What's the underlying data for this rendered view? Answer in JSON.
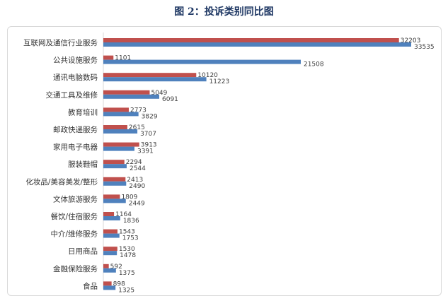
{
  "chart_data": {
    "type": "bar",
    "orientation": "horizontal",
    "title": "图 2：投诉类别同比图",
    "categories": [
      "互联网及通信行业服务",
      "公共设施服务",
      "通讯电脑数码",
      "交通工具及维修",
      "教育培训",
      "邮政快递服务",
      "家用电子电器",
      "服装鞋帽",
      "化妆品/美容美发/整形",
      "文体旅游服务",
      "餐饮/住宿服务",
      "中介/维修服务",
      "日用商品",
      "金融保险服务",
      "食品"
    ],
    "series": [
      {
        "color": "#c0504d",
        "values": [
          32203,
          1101,
          10120,
          5049,
          2773,
          2615,
          3913,
          2294,
          2413,
          1809,
          1164,
          1543,
          1530,
          592,
          898
        ]
      },
      {
        "color": "#4f81bd",
        "values": [
          33535,
          21508,
          11223,
          6091,
          3829,
          3707,
          3391,
          2544,
          2490,
          2449,
          1836,
          1753,
          1478,
          1375,
          1325
        ]
      }
    ],
    "xlim": [
      0,
      35000
    ],
    "grid": false,
    "legend": "none"
  }
}
